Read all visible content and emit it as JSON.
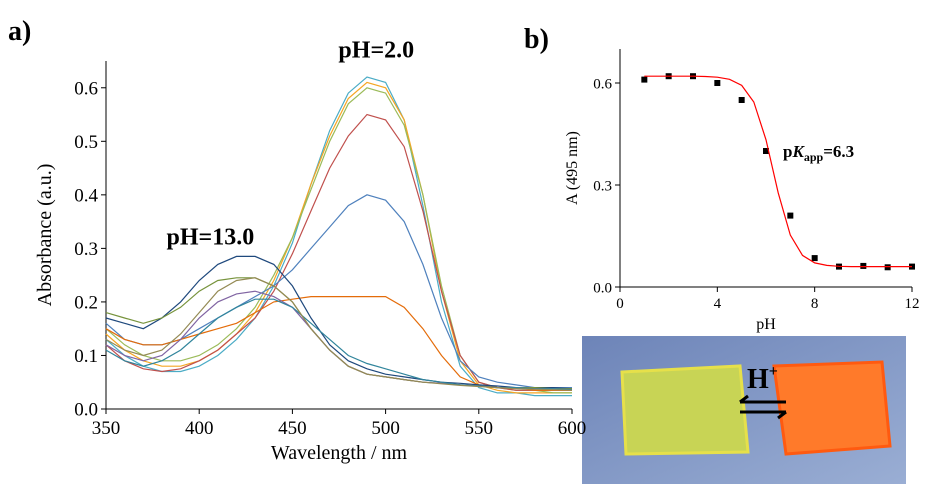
{
  "chart_data": [
    {
      "type": "line",
      "panel_label": "a)",
      "xlabel": "Wavelength / nm",
      "ylabel": "Absorbance (a.u.)",
      "annotations": [
        "pH=13.0",
        "pH=2.0"
      ],
      "xlim": [
        350,
        600
      ],
      "xticks": [
        350,
        400,
        450,
        500,
        550,
        600
      ],
      "ylim": [
        0,
        0.65
      ],
      "yticks": [
        {
          "value": 0,
          "label": "0.0"
        },
        0.1,
        0.2,
        0.3,
        0.4,
        0.5,
        0.6
      ],
      "x": [
        350,
        360,
        370,
        380,
        390,
        400,
        410,
        420,
        430,
        440,
        450,
        460,
        470,
        480,
        490,
        500,
        510,
        520,
        530,
        540,
        550,
        560,
        570,
        580,
        590,
        600
      ],
      "series": [
        {
          "color": "#4bacc6",
          "values": [
            0.13,
            0.1,
            0.08,
            0.07,
            0.07,
            0.08,
            0.1,
            0.13,
            0.17,
            0.23,
            0.31,
            0.42,
            0.52,
            0.59,
            0.62,
            0.61,
            0.54,
            0.38,
            0.2,
            0.08,
            0.04,
            0.03,
            0.03,
            0.025,
            0.025,
            0.025
          ]
        },
        {
          "color": "#f5a623",
          "values": [
            0.14,
            0.11,
            0.09,
            0.08,
            0.08,
            0.09,
            0.11,
            0.14,
            0.18,
            0.24,
            0.32,
            0.42,
            0.51,
            0.58,
            0.61,
            0.6,
            0.54,
            0.4,
            0.22,
            0.09,
            0.045,
            0.035,
            0.03,
            0.03,
            0.03,
            0.03
          ]
        },
        {
          "color": "#9bbb59",
          "values": [
            0.15,
            0.12,
            0.1,
            0.09,
            0.09,
            0.1,
            0.12,
            0.15,
            0.19,
            0.25,
            0.32,
            0.41,
            0.5,
            0.57,
            0.6,
            0.59,
            0.53,
            0.4,
            0.23,
            0.1,
            0.05,
            0.04,
            0.035,
            0.035,
            0.03,
            0.03
          ]
        },
        {
          "color": "#c0504d",
          "values": [
            0.12,
            0.09,
            0.075,
            0.07,
            0.075,
            0.09,
            0.11,
            0.14,
            0.17,
            0.22,
            0.29,
            0.37,
            0.45,
            0.51,
            0.55,
            0.54,
            0.49,
            0.37,
            0.22,
            0.1,
            0.05,
            0.04,
            0.035,
            0.035,
            0.035,
            0.035
          ]
        },
        {
          "color": "#4f81bd",
          "values": [
            0.16,
            0.13,
            0.12,
            0.12,
            0.13,
            0.15,
            0.17,
            0.19,
            0.21,
            0.23,
            0.26,
            0.3,
            0.34,
            0.38,
            0.4,
            0.39,
            0.35,
            0.27,
            0.17,
            0.09,
            0.06,
            0.05,
            0.045,
            0.04,
            0.04,
            0.04
          ]
        },
        {
          "color": "#e46c0a",
          "values": [
            0.15,
            0.13,
            0.12,
            0.12,
            0.13,
            0.14,
            0.15,
            0.16,
            0.18,
            0.2,
            0.205,
            0.21,
            0.21,
            0.21,
            0.21,
            0.21,
            0.19,
            0.15,
            0.1,
            0.06,
            0.045,
            0.04,
            0.04,
            0.035,
            0.035,
            0.035
          ]
        },
        {
          "color": "#1f497d",
          "values": [
            0.17,
            0.16,
            0.15,
            0.17,
            0.2,
            0.24,
            0.27,
            0.285,
            0.285,
            0.27,
            0.23,
            0.17,
            0.12,
            0.09,
            0.075,
            0.065,
            0.06,
            0.055,
            0.05,
            0.048,
            0.045,
            0.043,
            0.04,
            0.04,
            0.04,
            0.038
          ]
        },
        {
          "color": "#77933c",
          "values": [
            0.18,
            0.17,
            0.16,
            0.17,
            0.19,
            0.22,
            0.24,
            0.245,
            0.245,
            0.23,
            0.2,
            0.15,
            0.11,
            0.08,
            0.065,
            0.06,
            0.055,
            0.05,
            0.048,
            0.045,
            0.043,
            0.04,
            0.04,
            0.04,
            0.038,
            0.038
          ]
        },
        {
          "color": "#8064a2",
          "values": [
            0.12,
            0.1,
            0.09,
            0.1,
            0.13,
            0.17,
            0.2,
            0.215,
            0.22,
            0.21,
            0.19,
            0.15,
            0.11,
            0.08,
            0.065,
            0.06,
            0.055,
            0.05,
            0.048,
            0.045,
            0.043,
            0.04,
            0.04,
            0.038,
            0.038,
            0.036
          ]
        },
        {
          "color": "#31859c",
          "values": [
            0.11,
            0.09,
            0.08,
            0.09,
            0.11,
            0.14,
            0.17,
            0.19,
            0.205,
            0.205,
            0.19,
            0.16,
            0.13,
            0.1,
            0.085,
            0.075,
            0.065,
            0.055,
            0.05,
            0.045,
            0.043,
            0.04,
            0.04,
            0.038,
            0.038,
            0.036
          ]
        },
        {
          "color": "#948a54",
          "values": [
            0.13,
            0.11,
            0.1,
            0.11,
            0.14,
            0.18,
            0.22,
            0.24,
            0.245,
            0.23,
            0.2,
            0.15,
            0.11,
            0.08,
            0.065,
            0.06,
            0.055,
            0.05,
            0.047,
            0.044,
            0.042,
            0.04,
            0.038,
            0.037,
            0.036,
            0.035
          ]
        }
      ]
    },
    {
      "type": "scatter",
      "panel_label": "b)",
      "xlabel": "pH",
      "ylabel": "A (495 nm)",
      "annotation": {
        "prefix": "p",
        "italic": "K",
        "subscript": "app",
        "suffix": "=6.3"
      },
      "xlim": [
        0,
        12
      ],
      "xticks": [
        0,
        4,
        8,
        12
      ],
      "ylim": [
        0,
        0.7
      ],
      "yticks": [
        {
          "value": 0,
          "label": "0.0"
        },
        0.3,
        0.6
      ],
      "series": [
        {
          "color": "#000000",
          "marker": "square",
          "x": [
            1,
            2,
            3,
            4,
            5,
            6,
            7,
            8,
            9,
            10,
            11,
            12
          ],
          "values": [
            0.61,
            0.62,
            0.62,
            0.6,
            0.55,
            0.4,
            0.21,
            0.085,
            0.06,
            0.062,
            0.058,
            0.06
          ]
        },
        {
          "color": "#ff0000",
          "marker": "line",
          "x": [
            1,
            1.5,
            2,
            2.5,
            3,
            3.5,
            4,
            4.5,
            5,
            5.5,
            6,
            6.5,
            7,
            7.5,
            8,
            8.5,
            9,
            9.5,
            10,
            10.5,
            11,
            11.5,
            12
          ],
          "values": [
            0.62,
            0.62,
            0.62,
            0.62,
            0.62,
            0.619,
            0.617,
            0.611,
            0.593,
            0.544,
            0.433,
            0.277,
            0.153,
            0.093,
            0.071,
            0.0635,
            0.061,
            0.06,
            0.06,
            0.06,
            0.06,
            0.06,
            0.06
          ]
        }
      ]
    },
    {
      "type": "photo",
      "label": "H",
      "superscript": "+"
    }
  ]
}
